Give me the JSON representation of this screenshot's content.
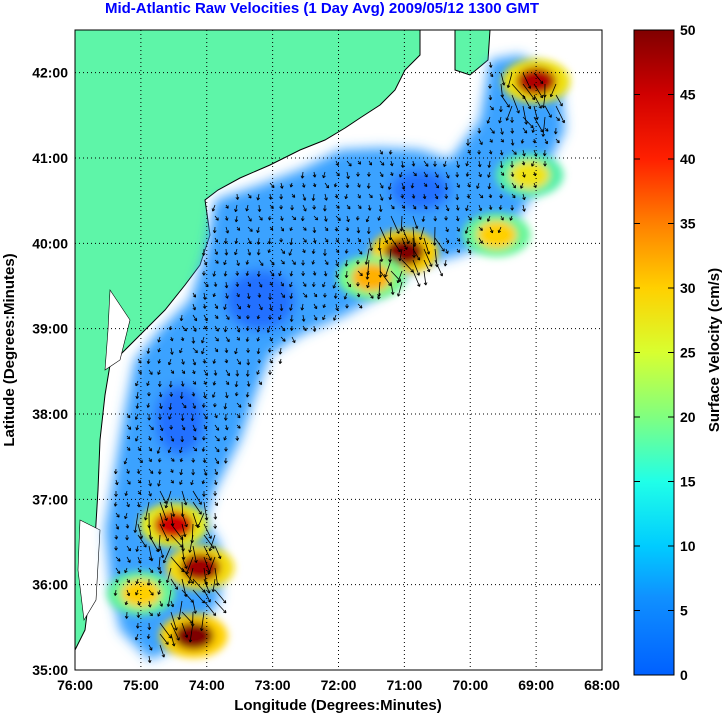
{
  "title": "Mid-Atlantic Raw Velocities (1 Day Avg) 2009/05/12 1300 GMT",
  "chart_data": {
    "type": "heatmap",
    "xlabel": "Longitude (Degrees:Minutes)",
    "ylabel": "Latitude (Degrees:Minutes)",
    "x_ticks": [
      "76:00",
      "75:00",
      "74:00",
      "73:00",
      "72:00",
      "71:00",
      "70:00",
      "69:00",
      "68:00"
    ],
    "y_ticks": [
      "42:00",
      "41:00",
      "40:00",
      "39:00",
      "38:00",
      "37:00",
      "36:00",
      "35:00"
    ],
    "xlim": [
      -76,
      -68
    ],
    "ylim": [
      35,
      42.5
    ],
    "grid": true,
    "colorbar": {
      "label": "Surface Velocity (cm/s)",
      "range": [
        0,
        50
      ],
      "ticks": [
        "0",
        "5",
        "10",
        "15",
        "20",
        "25",
        "30",
        "35",
        "40",
        "45",
        "50"
      ]
    },
    "hotspots": [
      {
        "lon": -71.0,
        "lat": 39.9,
        "speed": 50
      },
      {
        "lon": -74.2,
        "lat": 35.4,
        "speed": 50
      },
      {
        "lon": -74.1,
        "lat": 36.2,
        "speed": 48
      },
      {
        "lon": -74.5,
        "lat": 36.7,
        "speed": 45
      },
      {
        "lon": -69.0,
        "lat": 41.9,
        "speed": 47
      },
      {
        "lon": -71.5,
        "lat": 39.6,
        "speed": 32
      },
      {
        "lon": -75.0,
        "lat": 35.9,
        "speed": 30
      },
      {
        "lon": -69.6,
        "lat": 40.1,
        "speed": 30
      },
      {
        "lon": -69.1,
        "lat": 40.8,
        "speed": 28
      }
    ]
  },
  "colors": {
    "land": "#5ef5a8",
    "title": "#0000ff",
    "grid": "#000000"
  }
}
